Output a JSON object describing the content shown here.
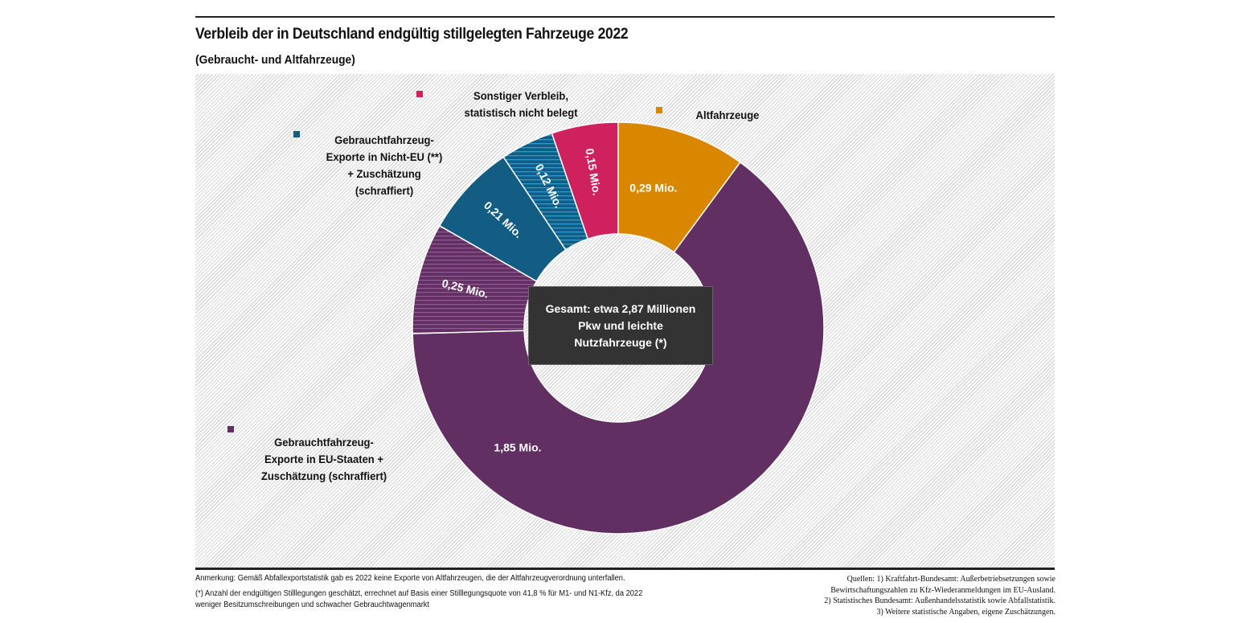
{
  "header": {
    "title": "Verbleib der in Deutschland endgültig stillgelegten Fahrzeuge 2022",
    "subtitle": "(Gebraucht- und Altfahrzeuge)"
  },
  "center_label": "Gesamt: etwa 2,87 Millionen\nPkw und leichte\nNutzfahrzeuge (*)",
  "legend": [
    {
      "key": "sonstiger",
      "label": "Sonstiger Verbleib,\nstatistisch nicht belegt",
      "color": "#d0215f"
    },
    {
      "key": "nicht_eu",
      "label": "Gebrauchtfahrzeug-\nExporte in Nicht-EU (**)\n+ Zuschätzung\n(schraffiert)",
      "color": "#135d84"
    },
    {
      "key": "altfahrzeuge",
      "label": "Altfahrzeuge",
      "color": "#d98600"
    },
    {
      "key": "eu",
      "label": "Gebrauchtfahrzeug-\nExporte in EU-Staaten +\nZuschätzung  (schraffiert)",
      "color": "#622f63"
    }
  ],
  "chart_data": {
    "type": "pie",
    "variant": "donut",
    "title": "Verbleib der in Deutschland endgültig stillgelegten Fahrzeuge 2022",
    "subtitle": "(Gebraucht- und Altfahrzeuge)",
    "unit": "Mio.",
    "total": 2.87,
    "start": "12 o'clock",
    "direction": "clockwise",
    "slices": [
      {
        "name": "Altfahrzeuge",
        "value": 0.29,
        "label": "0,29 Mio.",
        "color": "#d98600",
        "hatched": false,
        "group": "altfahrzeuge"
      },
      {
        "name": "Gebrauchtfahrzeug-Exporte in EU-Staaten",
        "value": 1.85,
        "label": "1,85 Mio.",
        "color": "#622f63",
        "hatched": false,
        "group": "eu"
      },
      {
        "name": "Zuschätzung EU-Staaten (schraffiert)",
        "value": 0.25,
        "label": "0,25 Mio.",
        "color": "#622f63",
        "hatched": true,
        "hatch_color": "#8f5a90",
        "group": "eu"
      },
      {
        "name": "Gebrauchtfahrzeug-Exporte in Nicht-EU",
        "value": 0.21,
        "label": "0,21 Mio.",
        "color": "#135d84",
        "hatched": false,
        "group": "nicht_eu"
      },
      {
        "name": "Zuschätzung Nicht-EU (schraffiert)",
        "value": 0.12,
        "label": "0,12 Mio.",
        "color": "#135d84",
        "hatched": true,
        "hatch_color": "#2c9ad0",
        "group": "nicht_eu"
      },
      {
        "name": "Sonstiger Verbleib, statistisch nicht belegt",
        "value": 0.15,
        "label": "0,15 Mio.",
        "color": "#d0215f",
        "hatched": false,
        "group": "sonstiger"
      }
    ]
  },
  "footer": {
    "note": "Anmerkung: Gemäß Abfallexportstatistik gab es 2022 keine Exporte von Altfahrzeugen, die der Altfahrzeugverordnung unterfallen.",
    "footnote_line1": "(*) Anzahl der endgültigen Stilllegungen geschätzt, errechnet auf Basis einer Stilllegungsquote von 41,8 % für M1- und N1-Kfz, da 2022",
    "footnote_line2": "weniger Besitzumschreibungen und schwacher Gebrauchtwagenmarkt",
    "sources": "Quellen: 1) Kraftfahrt-Bundesamt: Außerbetriebsetzungen sowie\nBewirtschaftungszahlen zu Kfz-Wiederanmeldungen im EU-Ausland.\n2) Statistisches Bundesamt: Außenhandelsstatistik sowie Abfallstatistik.\n3) Weitere statistische Angaben, eigene Zuschätzungen."
  }
}
